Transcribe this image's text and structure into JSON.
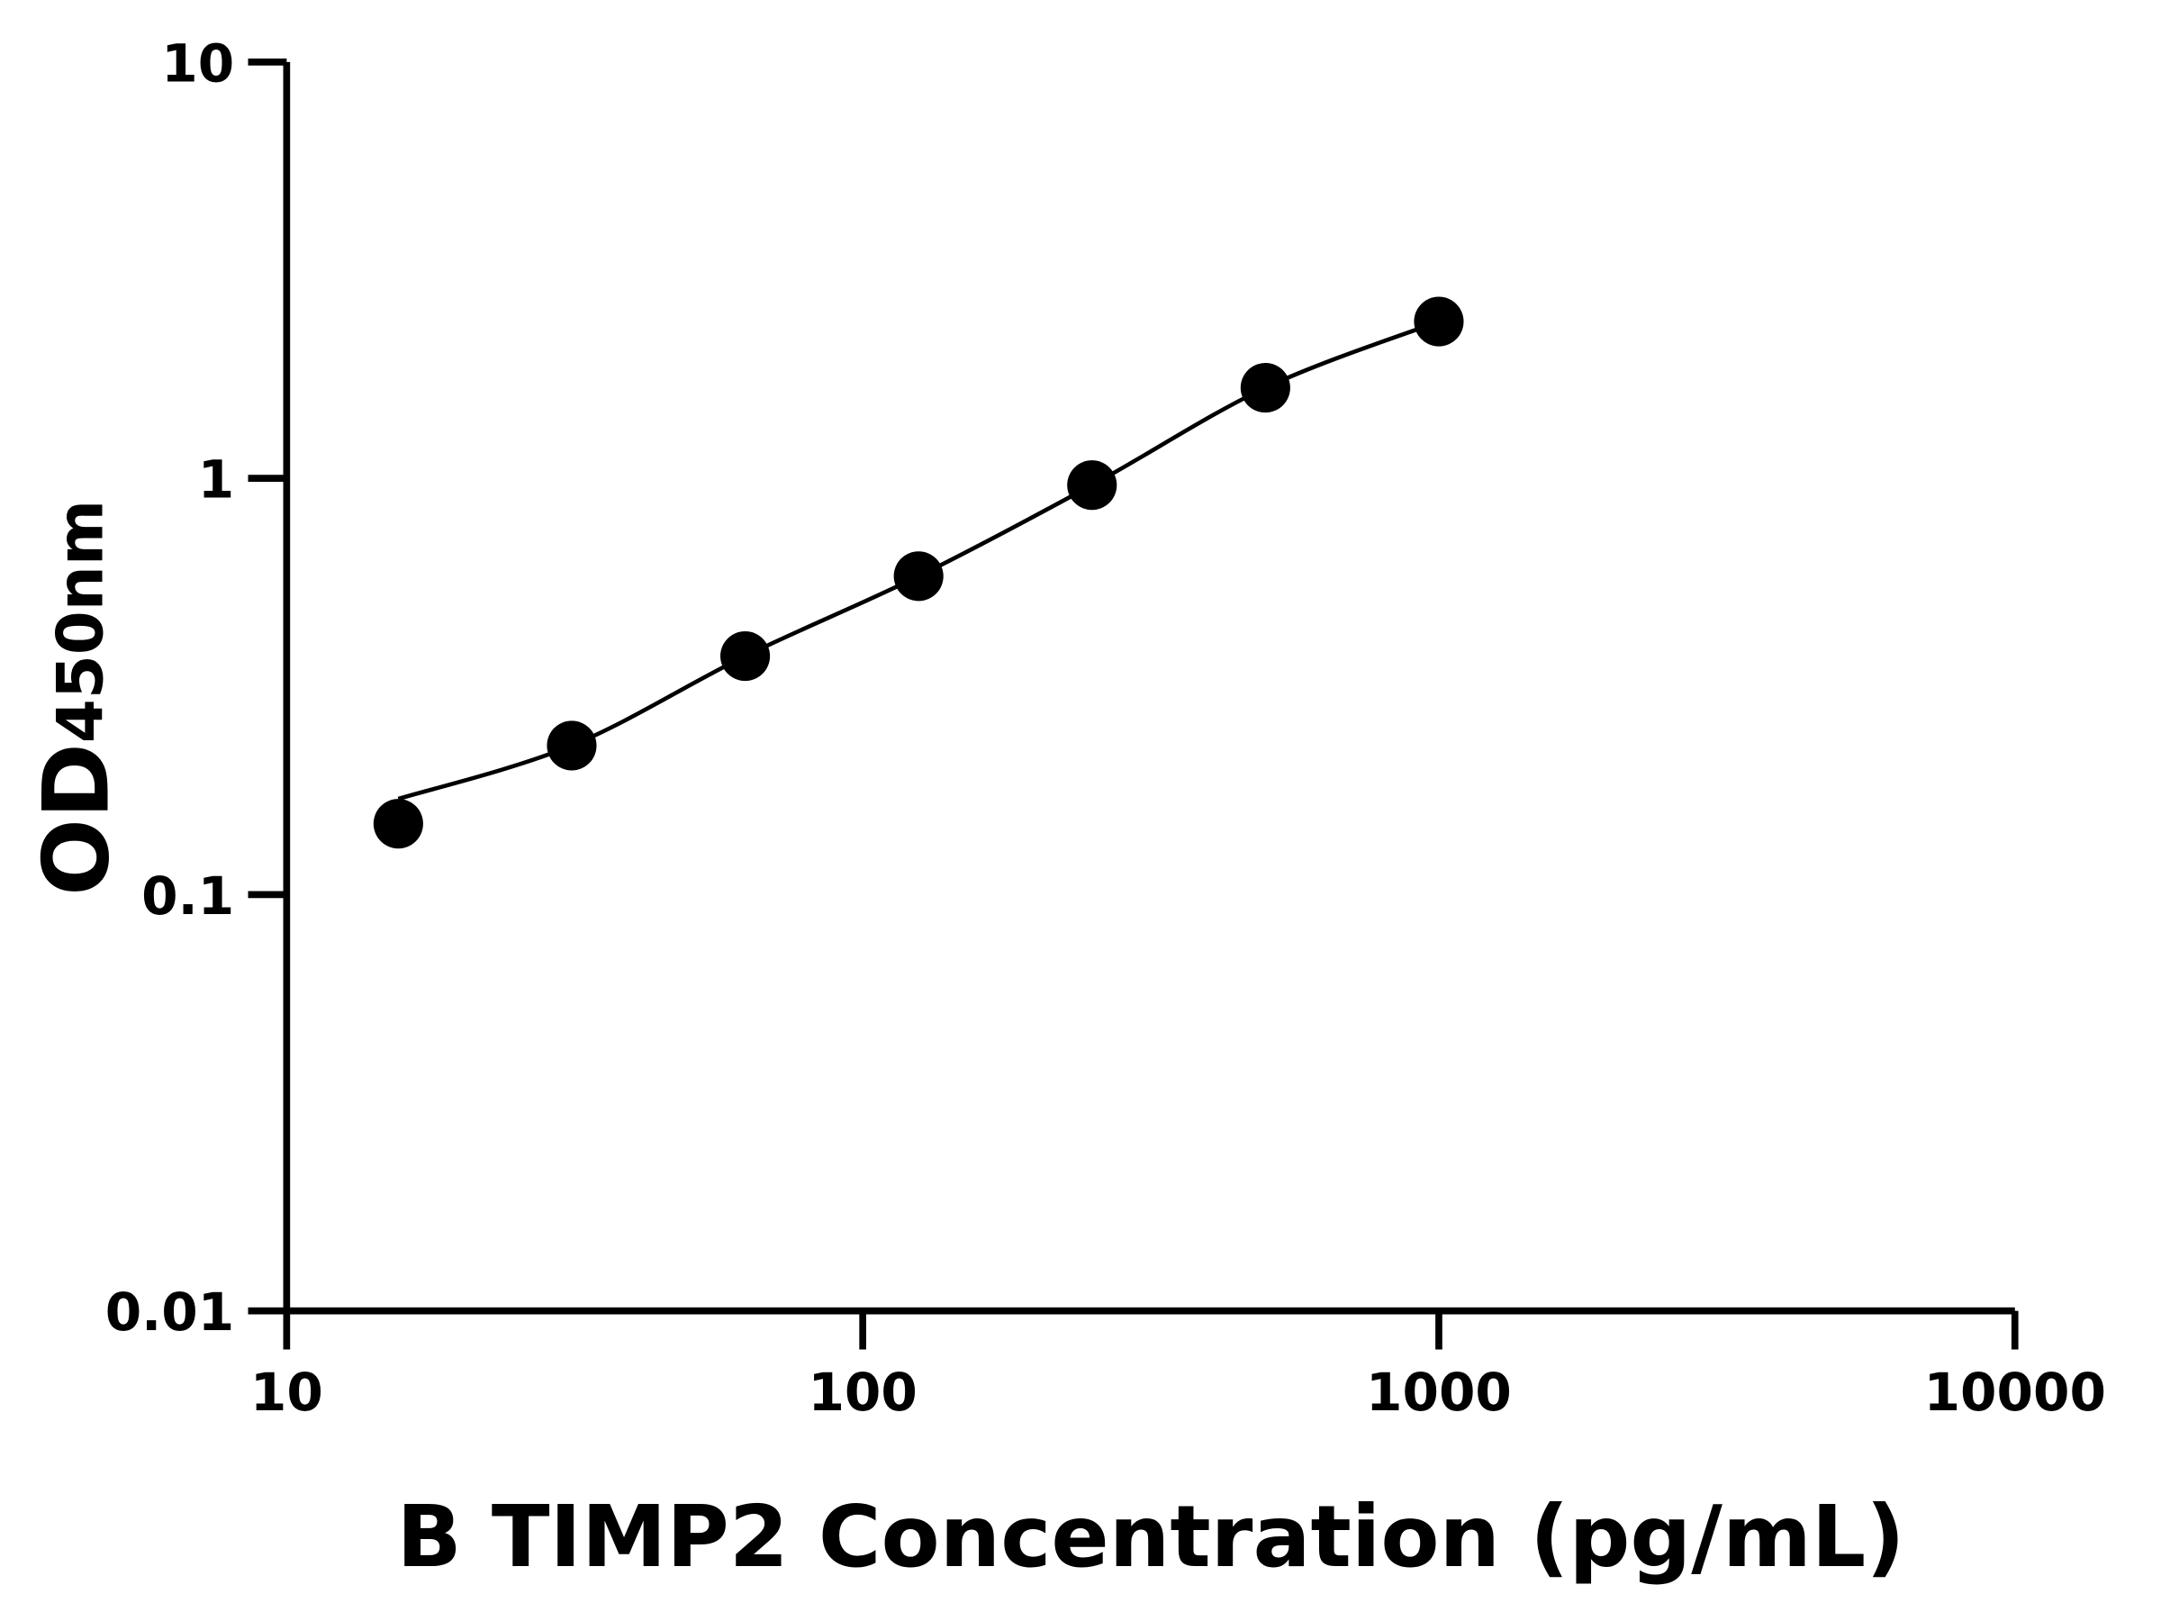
{
  "chart_data": {
    "type": "scatter",
    "xlabel": "B TIMP2 Concentration (pg/mL)",
    "ylabel": "OD",
    "ylabel_subscript": "450nm",
    "x_scale": "log",
    "y_scale": "log",
    "xlim": [
      10,
      10000
    ],
    "ylim": [
      0.01,
      10
    ],
    "x_ticks": [
      "10",
      "100",
      "1000",
      "10000"
    ],
    "y_ticks": [
      "0.01",
      "0.1",
      "1",
      "10"
    ],
    "grid": false,
    "fit_curve": true,
    "series": [
      {
        "x": [
          15.625,
          31.25,
          62.5,
          125,
          250,
          500,
          1000
        ],
        "y": [
          0.148,
          0.228,
          0.374,
          0.582,
          0.963,
          1.65,
          2.38
        ]
      }
    ],
    "colors": {
      "marker": "#000000",
      "line": "#000000",
      "axis": "#000000"
    }
  }
}
